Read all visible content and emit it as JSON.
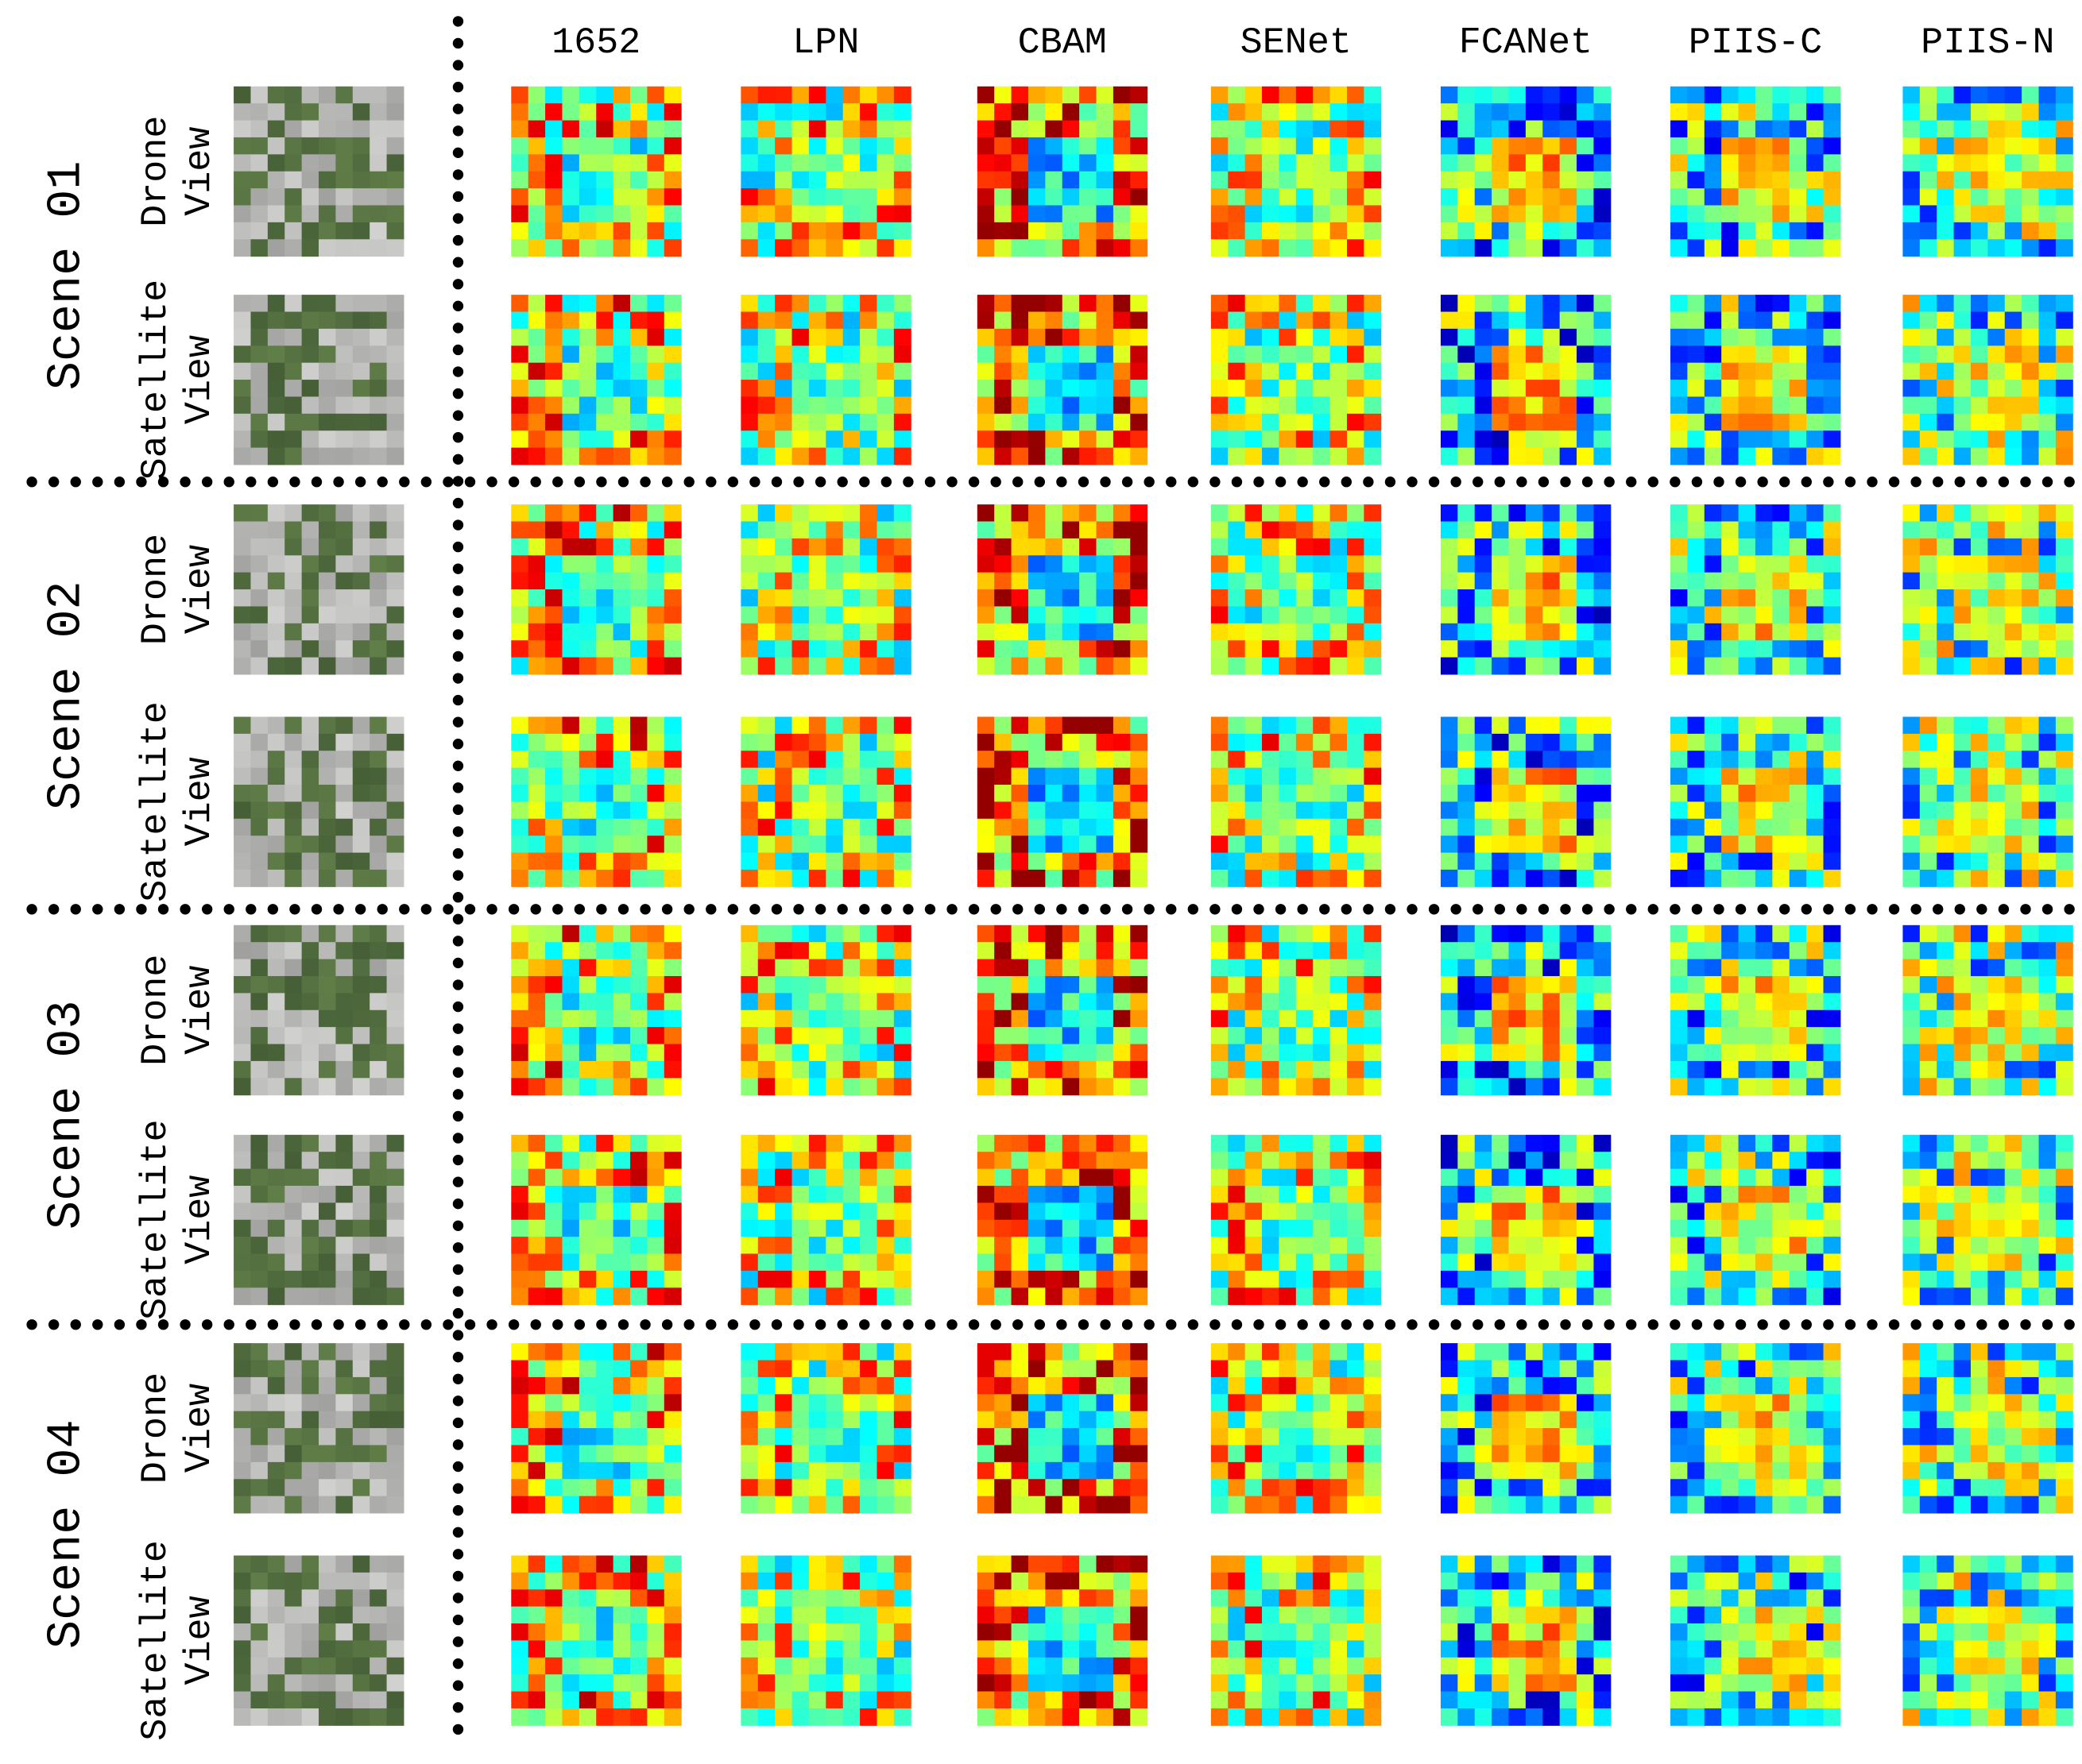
{
  "columns": [
    "1652",
    "LPN",
    "CBAM",
    "SENet",
    "FCANet",
    "PIIS-C",
    "PIIS-N"
  ],
  "scenes": [
    {
      "label": "Scene 01",
      "views": [
        [
          "Drone",
          "View"
        ],
        [
          "Satellite",
          "View"
        ]
      ]
    },
    {
      "label": "Scene 02",
      "views": [
        [
          "Drone",
          "View"
        ],
        [
          "Satellite",
          "View"
        ]
      ]
    },
    {
      "label": "Scene 03",
      "views": [
        [
          "Drone",
          "View"
        ],
        [
          "Satellite",
          "View"
        ]
      ]
    },
    {
      "label": "Scene 04",
      "views": [
        [
          "Drone",
          "View"
        ],
        [
          "Satellite",
          "View"
        ]
      ]
    }
  ]
}
